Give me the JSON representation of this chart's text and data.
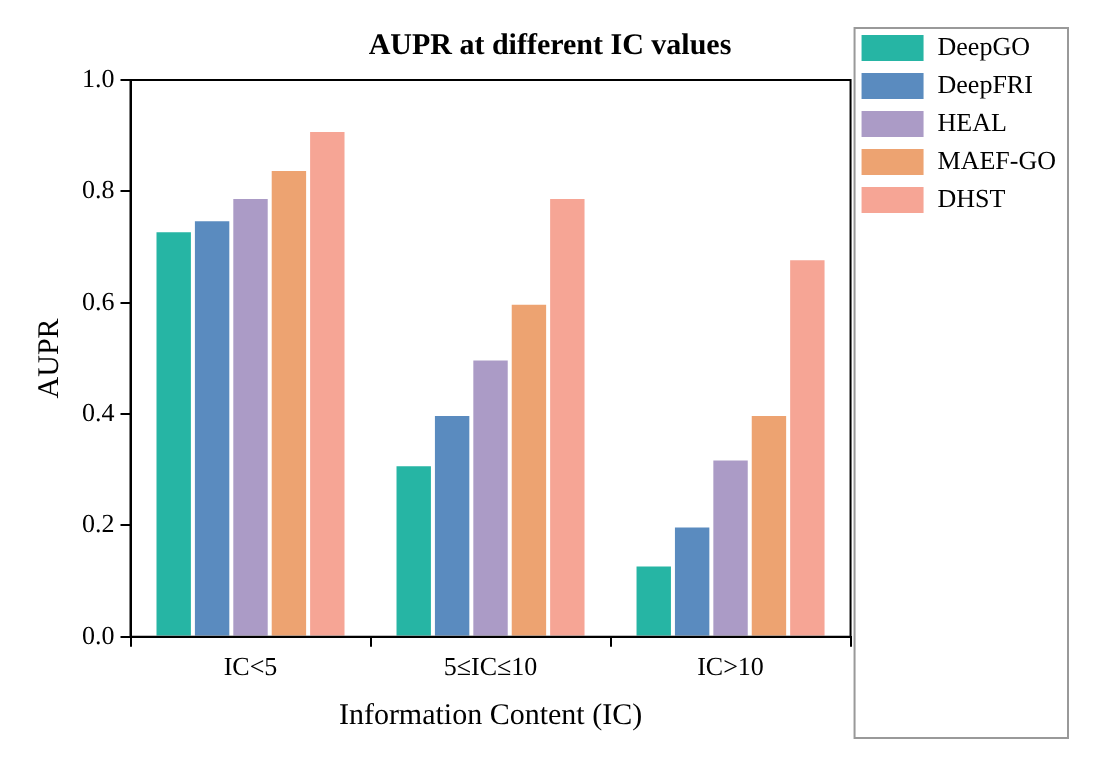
{
  "chart_data": {
    "type": "bar",
    "title": "AUPR at different IC values",
    "xlabel": "Information Content (IC)",
    "ylabel": "AUPR",
    "categories": [
      "IC<5",
      "5≤IC≤10",
      "IC>10"
    ],
    "series": [
      {
        "name": "DeepGO",
        "color": "#26b5a4",
        "values": [
          0.73,
          0.31,
          0.13
        ]
      },
      {
        "name": "DeepFRI",
        "color": "#5a8bbf",
        "values": [
          0.75,
          0.4,
          0.2
        ]
      },
      {
        "name": "HEAL",
        "color": "#ab9bc6",
        "values": [
          0.79,
          0.5,
          0.32
        ]
      },
      {
        "name": "MAEF-GO",
        "color": "#eda371",
        "values": [
          0.84,
          0.6,
          0.4
        ]
      },
      {
        "name": "DHST",
        "color": "#f6a595",
        "values": [
          0.91,
          0.79,
          0.68
        ]
      }
    ],
    "ylim": [
      0,
      1
    ],
    "yticks": [
      {
        "value": 0,
        "label": "0.0"
      },
      {
        "value": 0.2,
        "label": "0.2"
      },
      {
        "value": 0.4,
        "label": "0.4"
      },
      {
        "value": 0.6,
        "label": "0.6"
      },
      {
        "value": 0.8,
        "label": "0.8"
      },
      {
        "value": 1,
        "label": "1.0"
      }
    ],
    "grid": false,
    "legend": "right"
  }
}
